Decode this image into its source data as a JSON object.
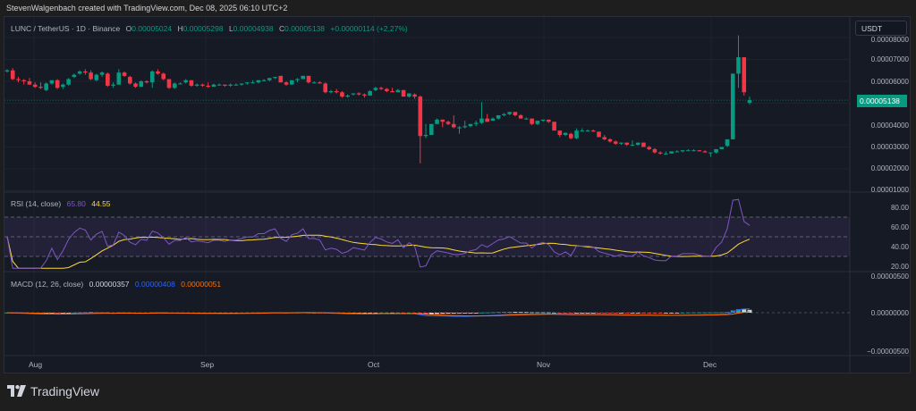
{
  "header": {
    "credit": "StevenWalgenbach created with TradingView.com, Dec 08, 2025 06:10 UTC+2"
  },
  "symbol": {
    "title": "LUNC / TetherUS · 1D · Binance",
    "o_label": "O",
    "o_value": "0.00005024",
    "h_label": "H",
    "h_value": "0.00005298",
    "l_label": "L",
    "l_value": "0.00004938",
    "c_label": "C",
    "c_value": "0.00005138",
    "change": "+0.00000114 (+2.27%)"
  },
  "price_axis": {
    "currency": "USDT",
    "last_price": "0.00005138",
    "ticks": [
      "0.00008000",
      "0.00007000",
      "0.00006000",
      "0.00004000",
      "0.00003000",
      "0.00002000",
      "0.00001000"
    ]
  },
  "rsi": {
    "label": "RSI (14, close)",
    "rsi_value": "65.80",
    "ma_value": "44.55",
    "ticks": [
      "80.00",
      "60.00",
      "40.00",
      "20.00"
    ]
  },
  "macd": {
    "label": "MACD (12, 26, close)",
    "hist_value": "0.00000357",
    "macd_value": "0.00000408",
    "signal_value": "0.00000051",
    "ticks": [
      "0.00000500",
      "0.00000000",
      "−0.00000500"
    ]
  },
  "time_axis": {
    "labels": [
      "Aug",
      "Sep",
      "Oct",
      "Nov",
      "Dec"
    ]
  },
  "brand": {
    "name": "TradingView"
  },
  "colors": {
    "up": "#089981",
    "down": "#f23645",
    "rsi": "#7e57c2",
    "rsi_ma": "#fdd835",
    "macd": "#2962ff",
    "signal": "#ff6d00",
    "background": "#161a25"
  },
  "chart_data": [
    {
      "type": "candlestick",
      "title": "LUNC / TetherUS · 1D · Binance",
      "ylabel": "USDT",
      "ylim": [
        1e-05,
        8e-05
      ],
      "x_ticks": [
        "Aug",
        "Sep",
        "Oct",
        "Nov",
        "Dec"
      ],
      "last_close": 5.138e-05,
      "ohlc_last": {
        "open": 5.024e-05,
        "high": 5.298e-05,
        "low": 4.938e-05,
        "close": 5.138e-05
      },
      "candles": [
        [
          6.45,
          6.55,
          6.4,
          6.5
        ],
        [
          6.5,
          6.6,
          6.05,
          6.1
        ],
        [
          6.1,
          6.2,
          5.95,
          6.05
        ],
        [
          6.05,
          6.1,
          5.85,
          6.0
        ],
        [
          6.0,
          6.15,
          5.85,
          5.85
        ],
        [
          5.85,
          5.95,
          5.7,
          5.75
        ],
        [
          5.75,
          5.95,
          5.65,
          5.7
        ],
        [
          5.6,
          5.95,
          5.55,
          5.9
        ],
        [
          5.9,
          6.05,
          5.85,
          6.05
        ],
        [
          6.05,
          6.1,
          5.65,
          5.7
        ],
        [
          5.75,
          5.9,
          5.65,
          5.85
        ],
        [
          5.85,
          6.15,
          5.8,
          6.1
        ],
        [
          6.2,
          6.35,
          6.15,
          6.3
        ],
        [
          6.35,
          6.5,
          6.3,
          6.45
        ],
        [
          6.45,
          6.55,
          6.3,
          6.4
        ],
        [
          6.4,
          6.5,
          6.05,
          6.1
        ],
        [
          6.05,
          6.35,
          6.0,
          6.3
        ],
        [
          6.3,
          6.45,
          6.2,
          6.4
        ],
        [
          6.35,
          6.4,
          5.75,
          5.8
        ],
        [
          5.8,
          5.95,
          5.7,
          5.85
        ],
        [
          5.85,
          6.55,
          5.85,
          6.4
        ],
        [
          6.4,
          6.45,
          6.2,
          6.25
        ],
        [
          6.2,
          6.25,
          5.85,
          5.9
        ],
        [
          5.9,
          5.95,
          5.7,
          5.75
        ],
        [
          5.75,
          6.05,
          5.75,
          6.0
        ],
        [
          6.0,
          6.05,
          5.9,
          5.95
        ],
        [
          5.95,
          6.5,
          5.7,
          6.45
        ],
        [
          6.45,
          6.55,
          6.3,
          6.35
        ],
        [
          6.35,
          6.4,
          6.05,
          6.1
        ],
        [
          6.1,
          6.1,
          5.65,
          5.7
        ],
        [
          5.7,
          5.95,
          5.65,
          5.9
        ],
        [
          5.9,
          5.95,
          5.85,
          5.9
        ],
        [
          5.95,
          6.1,
          5.9,
          6.05
        ],
        [
          6.05,
          6.05,
          5.75,
          5.8
        ],
        [
          5.8,
          5.9,
          5.75,
          5.85
        ],
        [
          5.85,
          5.9,
          5.75,
          5.8
        ],
        [
          5.8,
          5.95,
          5.7,
          5.75
        ],
        [
          5.75,
          5.9,
          5.75,
          5.85
        ],
        [
          5.85,
          5.9,
          5.8,
          5.85
        ],
        [
          5.85,
          5.85,
          5.75,
          5.8
        ],
        [
          5.8,
          5.9,
          5.75,
          5.85
        ],
        [
          5.85,
          5.9,
          5.8,
          5.85
        ],
        [
          5.85,
          5.9,
          5.8,
          5.9
        ],
        [
          5.9,
          5.95,
          5.85,
          5.95
        ],
        [
          5.95,
          6.05,
          5.9,
          5.95
        ],
        [
          5.95,
          6.05,
          5.9,
          6.05
        ],
        [
          6.05,
          6.1,
          6.0,
          6.05
        ],
        [
          6.05,
          6.15,
          6.0,
          6.15
        ],
        [
          6.15,
          6.2,
          6.1,
          6.2
        ],
        [
          6.25,
          6.25,
          5.95,
          5.95
        ],
        [
          5.95,
          6.0,
          5.8,
          5.85
        ],
        [
          5.85,
          6.05,
          5.85,
          6.05
        ],
        [
          6.05,
          6.15,
          5.95,
          6.1
        ],
        [
          6.1,
          6.25,
          6.1,
          6.25
        ],
        [
          6.25,
          6.25,
          5.9,
          5.95
        ],
        [
          5.95,
          6.0,
          5.9,
          5.95
        ],
        [
          5.95,
          6.0,
          5.9,
          5.9
        ],
        [
          5.9,
          5.95,
          5.45,
          5.5
        ],
        [
          5.5,
          5.6,
          5.45,
          5.55
        ],
        [
          5.55,
          5.65,
          5.45,
          5.5
        ],
        [
          5.5,
          5.55,
          5.25,
          5.3
        ],
        [
          5.3,
          5.4,
          5.25,
          5.35
        ],
        [
          5.4,
          5.45,
          5.35,
          5.45
        ],
        [
          5.45,
          5.5,
          5.35,
          5.4
        ],
        [
          5.4,
          5.45,
          5.25,
          5.35
        ],
        [
          5.35,
          5.6,
          5.35,
          5.55
        ],
        [
          5.6,
          5.75,
          5.55,
          5.7
        ],
        [
          5.7,
          5.75,
          5.6,
          5.65
        ],
        [
          5.65,
          5.7,
          5.5,
          5.55
        ],
        [
          5.55,
          5.7,
          5.5,
          5.5
        ],
        [
          5.5,
          5.65,
          5.5,
          5.6
        ],
        [
          5.6,
          5.6,
          5.3,
          5.3
        ],
        [
          5.3,
          5.45,
          5.25,
          5.45
        ],
        [
          5.4,
          5.45,
          5.2,
          5.3
        ],
        [
          5.3,
          5.35,
          2.25,
          3.5
        ],
        [
          3.5,
          4.05,
          3.4,
          3.55
        ],
        [
          3.55,
          4.05,
          3.55,
          4.05
        ],
        [
          4.05,
          4.3,
          4.05,
          4.25
        ],
        [
          4.25,
          4.25,
          3.9,
          4.15
        ],
        [
          4.15,
          4.2,
          4.0,
          4.05
        ],
        [
          4.05,
          4.45,
          3.85,
          3.9
        ],
        [
          3.85,
          3.95,
          3.6,
          3.9
        ],
        [
          3.9,
          4.2,
          3.85,
          3.95
        ],
        [
          3.95,
          4.05,
          3.9,
          4.05
        ],
        [
          4.05,
          4.2,
          3.95,
          4.1
        ],
        [
          4.1,
          5.05,
          4.05,
          4.3
        ],
        [
          4.3,
          4.5,
          4.15,
          4.15
        ],
        [
          4.2,
          4.35,
          4.2,
          4.3
        ],
        [
          4.3,
          4.4,
          4.25,
          4.45
        ],
        [
          4.45,
          4.55,
          4.4,
          4.5
        ],
        [
          4.5,
          4.6,
          4.45,
          4.6
        ],
        [
          4.6,
          4.6,
          4.4,
          4.45
        ],
        [
          4.45,
          4.5,
          4.3,
          4.3
        ],
        [
          4.3,
          4.35,
          4.25,
          4.3
        ],
        [
          4.3,
          4.3,
          4.0,
          4.05
        ],
        [
          4.05,
          4.2,
          4.0,
          4.2
        ],
        [
          4.2,
          4.25,
          4.15,
          4.25
        ],
        [
          4.25,
          4.25,
          4.1,
          4.15
        ],
        [
          4.15,
          4.15,
          3.75,
          3.75
        ],
        [
          3.75,
          3.75,
          3.45,
          3.55
        ],
        [
          3.55,
          3.65,
          3.5,
          3.65
        ],
        [
          3.6,
          3.65,
          3.35,
          3.4
        ],
        [
          3.4,
          3.85,
          3.35,
          3.75
        ],
        [
          3.75,
          3.85,
          3.7,
          3.75
        ],
        [
          3.75,
          3.8,
          3.7,
          3.75
        ],
        [
          3.75,
          3.8,
          3.7,
          3.7
        ],
        [
          3.7,
          3.7,
          3.45,
          3.45
        ],
        [
          3.45,
          3.55,
          3.3,
          3.35
        ],
        [
          3.35,
          3.4,
          3.2,
          3.25
        ],
        [
          3.25,
          3.3,
          3.1,
          3.15
        ],
        [
          3.15,
          3.2,
          3.1,
          3.2
        ],
        [
          3.2,
          3.2,
          3.05,
          3.1
        ],
        [
          3.1,
          3.3,
          3.05,
          3.1
        ],
        [
          3.1,
          3.2,
          3.05,
          3.2
        ],
        [
          3.2,
          3.2,
          3.0,
          3.0
        ],
        [
          3.0,
          3.05,
          2.85,
          2.9
        ],
        [
          2.9,
          2.95,
          2.7,
          2.75
        ],
        [
          2.75,
          2.8,
          2.65,
          2.7
        ],
        [
          2.7,
          2.8,
          2.65,
          2.7
        ],
        [
          2.7,
          2.8,
          2.7,
          2.8
        ],
        [
          2.8,
          2.85,
          2.75,
          2.8
        ],
        [
          2.8,
          2.85,
          2.75,
          2.85
        ],
        [
          2.85,
          2.9,
          2.85,
          2.85
        ],
        [
          2.85,
          2.9,
          2.8,
          2.85
        ],
        [
          2.85,
          2.85,
          2.8,
          2.8
        ],
        [
          2.8,
          2.85,
          2.75,
          2.75
        ],
        [
          2.75,
          2.75,
          2.55,
          2.75
        ],
        [
          2.75,
          2.9,
          2.7,
          2.9
        ],
        [
          2.9,
          3.0,
          2.9,
          3.0
        ],
        [
          3.05,
          3.35,
          3.0,
          3.35
        ],
        [
          3.35,
          6.35,
          3.35,
          6.35
        ],
        [
          6.35,
          8.1,
          5.7,
          7.1
        ],
        [
          7.1,
          6.7,
          5.35,
          5.5
        ],
        [
          5.02,
          5.3,
          4.94,
          5.14
        ]
      ]
    },
    {
      "type": "line",
      "title": "RSI (14, close)",
      "ylim": [
        15,
        90
      ],
      "bands": [
        30,
        50,
        70
      ],
      "series": [
        {
          "name": "RSI",
          "color": "#7e57c2",
          "last": 65.8
        },
        {
          "name": "RSI-based MA",
          "color": "#fdd835",
          "last": 44.55
        }
      ]
    },
    {
      "type": "bar+line",
      "title": "MACD (12, 26, close)",
      "series": [
        {
          "name": "Histogram",
          "last": 3.57e-06
        },
        {
          "name": "MACD",
          "color": "#2962ff",
          "last": 4.08e-06
        },
        {
          "name": "Signal",
          "color": "#ff6d00",
          "last": 5.1e-07
        }
      ]
    }
  ]
}
